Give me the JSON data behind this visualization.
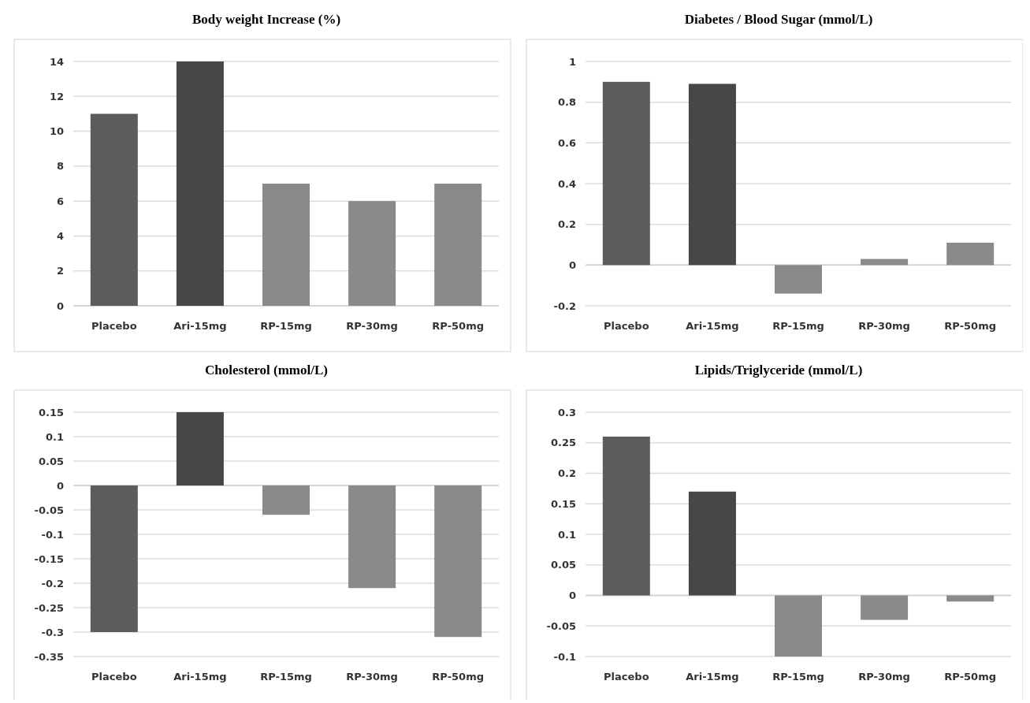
{
  "chart_data": [
    {
      "type": "bar",
      "title": "Body weight Increase (%)",
      "categories": [
        "Placebo",
        "Ari-15mg",
        "RP-15mg",
        "RP-30mg",
        "RP-50mg"
      ],
      "values": [
        11,
        14,
        7,
        6,
        7
      ],
      "colors": [
        "#5c5c5c",
        "#474747",
        "#8a8a8a",
        "#8a8a8a",
        "#8a8a8a"
      ],
      "ylim": [
        0,
        14
      ],
      "yticks": [
        0,
        2,
        4,
        6,
        8,
        10,
        12,
        14
      ],
      "grid": "y"
    },
    {
      "type": "bar",
      "title": "Diabetes / Blood Sugar (mmol/L)",
      "categories": [
        "Placebo",
        "Ari-15mg",
        "RP-15mg",
        "RP-30mg",
        "RP-50mg"
      ],
      "values": [
        0.9,
        0.89,
        -0.14,
        0.03,
        0.11
      ],
      "colors": [
        "#5c5c5c",
        "#474747",
        "#8a8a8a",
        "#8a8a8a",
        "#8a8a8a"
      ],
      "ylim": [
        -0.2,
        1
      ],
      "yticks": [
        -0.2,
        0,
        0.2,
        0.4,
        0.6,
        0.8,
        1
      ],
      "grid": "y"
    },
    {
      "type": "bar",
      "title": "Cholesterol (mmol/L)",
      "categories": [
        "Placebo",
        "Ari-15mg",
        "RP-15mg",
        "RP-30mg",
        "RP-50mg"
      ],
      "values": [
        -0.3,
        0.15,
        -0.06,
        -0.21,
        -0.31
      ],
      "colors": [
        "#5c5c5c",
        "#474747",
        "#8a8a8a",
        "#8a8a8a",
        "#8a8a8a"
      ],
      "ylim": [
        -0.35,
        0.15
      ],
      "yticks": [
        -0.35,
        -0.3,
        -0.25,
        -0.2,
        -0.15,
        -0.1,
        -0.05,
        0,
        0.05,
        0.1,
        0.15
      ],
      "grid": "y"
    },
    {
      "type": "bar",
      "title": "Lipids/Triglyceride (mmol/L)",
      "categories": [
        "Placebo",
        "Ari-15mg",
        "RP-15mg",
        "RP-30mg",
        "RP-50mg"
      ],
      "values": [
        0.26,
        0.17,
        -0.1,
        -0.04,
        -0.01
      ],
      "colors": [
        "#5c5c5c",
        "#474747",
        "#8a8a8a",
        "#8a8a8a",
        "#8a8a8a"
      ],
      "ylim": [
        -0.1,
        0.3
      ],
      "yticks": [
        -0.1,
        -0.05,
        0,
        0.05,
        0.1,
        0.15,
        0.2,
        0.25,
        0.3
      ],
      "grid": "y"
    }
  ]
}
